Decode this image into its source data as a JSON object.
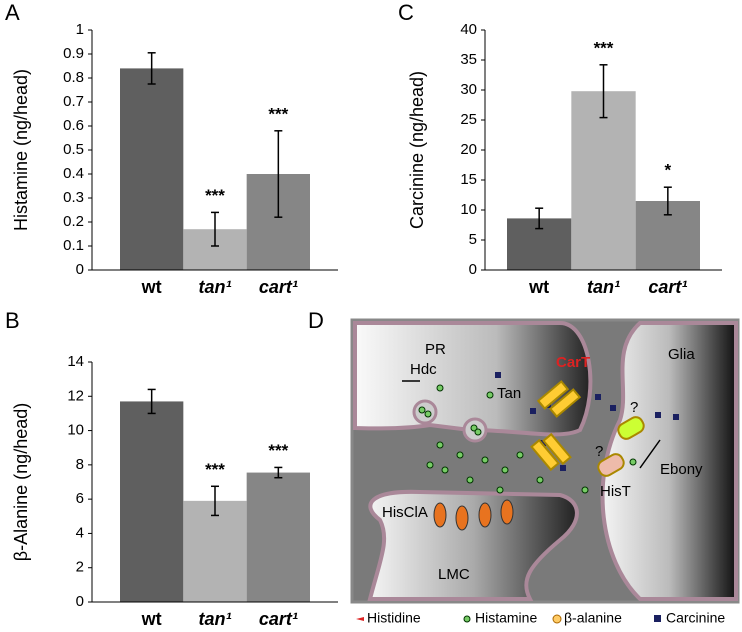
{
  "chart_data": [
    {
      "type": "bar",
      "panel_label": "A",
      "y_label": "Histamine (ng/head)",
      "categories": [
        "wt",
        "tan¹",
        "cart¹"
      ],
      "values": [
        0.84,
        0.17,
        0.4
      ],
      "errors": [
        0.065,
        0.07,
        0.18
      ],
      "significance": [
        null,
        "***",
        "***"
      ],
      "colors": [
        "#5f5f5f",
        "#b3b3b3",
        "#868686"
      ],
      "ylim": [
        0,
        1
      ],
      "yticks": [
        0,
        0.1,
        0.2,
        0.3,
        0.4,
        0.5,
        0.6,
        0.7,
        0.8,
        0.9,
        1
      ]
    },
    {
      "type": "bar",
      "panel_label": "B",
      "y_label": "β-Alanine (ng/head)",
      "categories": [
        "wt",
        "tan¹",
        "cart¹"
      ],
      "values": [
        11.7,
        5.9,
        7.55
      ],
      "errors": [
        0.7,
        0.85,
        0.3
      ],
      "significance": [
        null,
        "***",
        "***"
      ],
      "colors": [
        "#5f5f5f",
        "#b3b3b3",
        "#868686"
      ],
      "ylim": [
        0,
        14
      ],
      "yticks": [
        0,
        2,
        4,
        6,
        8,
        10,
        12,
        14
      ]
    },
    {
      "type": "bar",
      "panel_label": "C",
      "y_label": "Carcinine  (ng/head)",
      "categories": [
        "wt",
        "tan¹",
        "cart¹"
      ],
      "values": [
        8.6,
        29.8,
        11.5
      ],
      "errors": [
        1.7,
        4.4,
        2.3
      ],
      "significance": [
        null,
        "***",
        "*"
      ],
      "colors": [
        "#5f5f5f",
        "#b3b3b3",
        "#868686"
      ],
      "ylim": [
        0,
        40
      ],
      "yticks": [
        0,
        5,
        10,
        15,
        20,
        25,
        30,
        35,
        40
      ]
    }
  ],
  "diagram": {
    "panel_label": "D",
    "pr": "PR",
    "glia": "Glia",
    "lmc": "LMC",
    "cart": "CarT",
    "hdc": "Hdc",
    "tan": "Tan",
    "q1": "?",
    "q2": "?",
    "ebony": "Ebony",
    "hist": "HisT",
    "hiscla": "HisClA",
    "legend": [
      "Histidine",
      "Histamine",
      "β-alanine",
      "Carcinine"
    ]
  }
}
